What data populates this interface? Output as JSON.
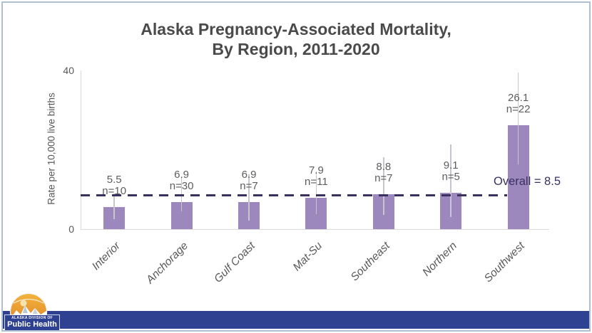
{
  "slide": {
    "title_line1": "Alaska Pregnancy-Associated Mortality,",
    "title_line2": "By Region, 2011-2020"
  },
  "chart_data": {
    "type": "bar",
    "title": "Alaska Pregnancy-Associated Mortality, By Region, 2011-2020",
    "ylabel": "Rate per 10,000 live births",
    "xlabel": "",
    "ylim": [
      0,
      40
    ],
    "yticks": [
      0,
      40
    ],
    "grid": false,
    "legend": "none",
    "categories": [
      "Interior",
      "Anchorage",
      "Gulf Coast",
      "Mat-Su",
      "Southeast",
      "Northern",
      "Southwest"
    ],
    "values": [
      5.5,
      6.9,
      6.9,
      7.9,
      8.8,
      9.1,
      26.1
    ],
    "n_labels": [
      "n=10",
      "n=30",
      "n=7",
      "n=11",
      "n=7",
      "n=5",
      "n=22"
    ],
    "error_low": [
      2.5,
      4.5,
      2.1,
      3.7,
      3.6,
      3.0,
      16.3
    ],
    "error_high": [
      9.0,
      12.9,
      13.8,
      14.6,
      18.2,
      21.4,
      39.5
    ],
    "overall_line": {
      "value": 8.5,
      "label": "Overall = 8.5",
      "style": "dashed"
    },
    "bar_color": "#9c88bd",
    "error_bar_color": "#c9c4cd",
    "overall_line_color": "#3a3060",
    "axis_line_color": "#d9d9d9"
  },
  "footer": {
    "logo": {
      "org_name_top": "ALASKA DIVISION OF",
      "org_name_bottom": "Public Health"
    },
    "bar_color": "#2e4291"
  },
  "colors": {
    "slide_border": "#b0c0d4",
    "title_text": "#4a4a4a",
    "axis_text": "#595959",
    "logo_orange": "#e8912d",
    "logo_blue": "#2d4091"
  }
}
